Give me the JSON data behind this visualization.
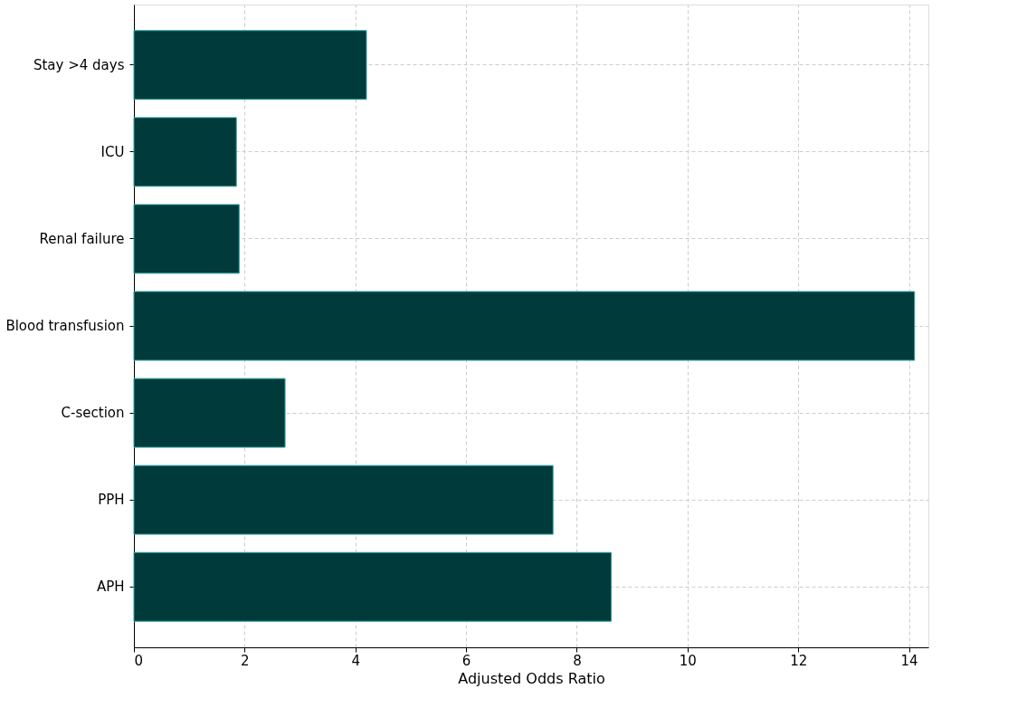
{
  "chart_data": {
    "type": "bar",
    "orientation": "horizontal",
    "xlabel": "Adjusted Odds Ratio",
    "categories": [
      "Stay >4 days",
      "ICU",
      "Renal failure",
      "Blood transfusion",
      "C-section",
      "PPH",
      "APH"
    ],
    "values": [
      4.2,
      1.85,
      1.9,
      14.1,
      2.73,
      7.57,
      8.62
    ],
    "color": "#013a3a",
    "xlim": [
      0,
      14.35
    ],
    "xticks": [
      0,
      2,
      4,
      6,
      8,
      10,
      12,
      14
    ],
    "grid": true
  }
}
